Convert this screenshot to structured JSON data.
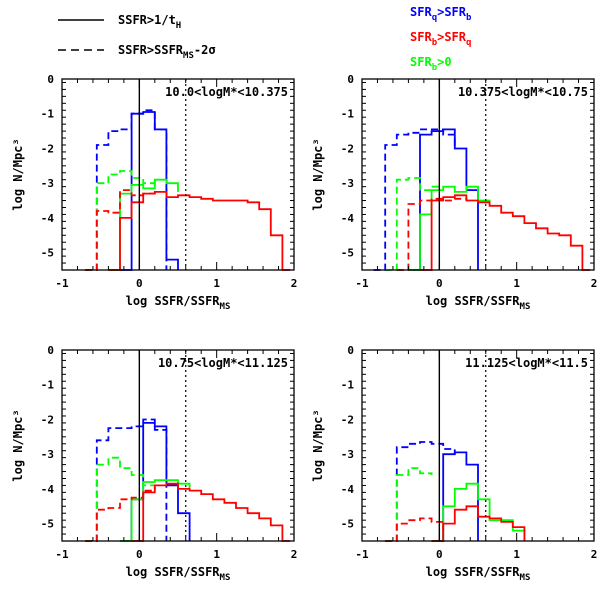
{
  "legend": {
    "solid_label": "SSFR>1/t",
    "solid_sub": "H",
    "dashed_label": "SSFR>SSFR",
    "dashed_sub": "MS",
    "dashed_tail": "-2σ",
    "blue_a": "SFR",
    "blue_a_sub": "q",
    "blue_b": ">SFR",
    "blue_b_sub": "b",
    "red_a": "SFR",
    "red_a_sub": "b",
    "red_b": ">SFR",
    "red_b_sub": "q",
    "green_a": "SFR",
    "green_a_sub": "b",
    "green_b": ">0"
  },
  "colors": {
    "blue": "#0000ff",
    "red": "#ff0000",
    "green": "#00ff00",
    "axis": "#000000"
  },
  "chart_data": [
    {
      "type": "line",
      "title": "10.0<logM*<10.375",
      "xlabel": "log SSFR/SSFR",
      "xlabel_sub": "MS",
      "ylabel": "log N/Mpc³",
      "xlim": [
        -1,
        2
      ],
      "ylim": [
        -5.5,
        0
      ],
      "xticks": [
        "-1",
        "0",
        "1",
        "2"
      ],
      "yticks": [
        "0",
        "-1",
        "-2",
        "-3",
        "-4",
        "-5"
      ],
      "vlines": [
        0,
        0.6
      ],
      "series": [
        {
          "name": "blue dashed",
          "color": "#0000ff",
          "dash": true,
          "x": [
            -0.7,
            -0.55,
            -0.4,
            -0.25,
            -0.1,
            0.05,
            0.2,
            0.35
          ],
          "y": [
            -5.5,
            -1.9,
            -1.5,
            -1.45,
            -1.0,
            -0.9,
            -1.45,
            -5.5
          ]
        },
        {
          "name": "blue solid",
          "color": "#0000ff",
          "dash": false,
          "x": [
            -0.25,
            -0.1,
            0.05,
            0.2,
            0.35,
            0.5
          ],
          "y": [
            -5.5,
            -1.0,
            -0.95,
            -1.45,
            -5.2,
            -5.5
          ]
        },
        {
          "name": "green dashed",
          "color": "#00ff00",
          "dash": true,
          "x": [
            -0.7,
            -0.55,
            -0.4,
            -0.25,
            -0.1,
            0.05,
            0.2
          ],
          "y": [
            -5.5,
            -3.0,
            -2.75,
            -2.65,
            -2.85,
            -3.0,
            -3.1
          ]
        },
        {
          "name": "green solid",
          "color": "#00ff00",
          "dash": false,
          "x": [
            -0.4,
            -0.25,
            -0.1,
            0.05,
            0.2,
            0.35,
            0.5
          ],
          "y": [
            -5.5,
            -3.3,
            -3.05,
            -3.15,
            -2.9,
            -3.0,
            -3.25
          ]
        },
        {
          "name": "red dashed",
          "color": "#ff0000",
          "dash": true,
          "x": [
            -0.7,
            -0.55,
            -0.4,
            -0.25,
            -0.1,
            0.05,
            0.2
          ],
          "y": [
            -5.5,
            -3.8,
            -3.85,
            -3.2,
            -3.35,
            -3.3,
            -3.25
          ]
        },
        {
          "name": "red solid",
          "color": "#ff0000",
          "dash": false,
          "x": [
            -0.4,
            -0.25,
            -0.1,
            0.05,
            0.2,
            0.35,
            0.5,
            0.65,
            0.8,
            0.95,
            1.1,
            1.25,
            1.4,
            1.55,
            1.7,
            1.85,
            1.95
          ],
          "y": [
            -5.5,
            -4.0,
            -3.55,
            -3.3,
            -3.25,
            -3.4,
            -3.35,
            -3.4,
            -3.45,
            -3.5,
            -3.5,
            -3.5,
            -3.55,
            -3.75,
            -4.5,
            -5.5,
            -5.5
          ]
        }
      ]
    },
    {
      "type": "line",
      "title": "10.375<logM*<10.75",
      "xlabel": "log SSFR/SSFR",
      "xlabel_sub": "MS",
      "ylabel": "log N/Mpc³",
      "xlim": [
        -1,
        2
      ],
      "ylim": [
        -5.5,
        0
      ],
      "xticks": [
        "-1",
        "0",
        "1",
        "2"
      ],
      "yticks": [
        "0",
        "-1",
        "-2",
        "-3",
        "-4",
        "-5"
      ],
      "vlines": [
        0,
        0.6
      ],
      "series": [
        {
          "name": "blue dashed",
          "color": "#0000ff",
          "dash": true,
          "x": [
            -0.85,
            -0.7,
            -0.55,
            -0.4,
            -0.25,
            -0.1,
            0.05,
            0.2
          ],
          "y": [
            -5.5,
            -1.9,
            -1.6,
            -1.55,
            -1.45,
            -1.45,
            -1.6,
            -2.0
          ]
        },
        {
          "name": "blue solid",
          "color": "#0000ff",
          "dash": false,
          "x": [
            -0.4,
            -0.25,
            -0.1,
            0.05,
            0.2,
            0.35,
            0.5
          ],
          "y": [
            -5.5,
            -1.6,
            -1.5,
            -1.45,
            -2.0,
            -3.2,
            -5.5
          ]
        },
        {
          "name": "green dashed",
          "color": "#00ff00",
          "dash": true,
          "x": [
            -0.7,
            -0.55,
            -0.4,
            -0.25,
            -0.1,
            0.05
          ],
          "y": [
            -5.5,
            -2.9,
            -2.85,
            -3.2,
            -3.1,
            -3.1
          ]
        },
        {
          "name": "green solid",
          "color": "#00ff00",
          "dash": false,
          "x": [
            -0.4,
            -0.25,
            -0.1,
            0.05,
            0.2,
            0.35,
            0.5,
            0.65
          ],
          "y": [
            -5.5,
            -3.9,
            -3.2,
            -3.1,
            -3.25,
            -3.1,
            -3.5,
            -3.6
          ]
        },
        {
          "name": "red dashed",
          "color": "#ff0000",
          "dash": true,
          "x": [
            -0.55,
            -0.4,
            -0.25,
            -0.1,
            0.05,
            0.2,
            0.35
          ],
          "y": [
            -5.5,
            -3.6,
            -3.5,
            -3.45,
            -3.5,
            -3.45,
            -3.5
          ]
        },
        {
          "name": "red solid",
          "color": "#ff0000",
          "dash": false,
          "x": [
            -0.25,
            -0.1,
            0.05,
            0.2,
            0.35,
            0.5,
            0.65,
            0.8,
            0.95,
            1.1,
            1.25,
            1.4,
            1.55,
            1.7,
            1.85,
            1.95
          ],
          "y": [
            -5.5,
            -3.5,
            -3.4,
            -3.35,
            -3.5,
            -3.55,
            -3.65,
            -3.85,
            -3.95,
            -4.15,
            -4.3,
            -4.45,
            -4.5,
            -4.8,
            -5.5,
            -5.5
          ]
        }
      ]
    },
    {
      "type": "line",
      "title": "10.75<logM*<11.125",
      "xlabel": "log SSFR/SSFR",
      "xlabel_sub": "MS",
      "ylabel": "log N/Mpc³",
      "xlim": [
        -1,
        2
      ],
      "ylim": [
        -5.5,
        0
      ],
      "xticks": [
        "-1",
        "0",
        "1",
        "2"
      ],
      "yticks": [
        "0",
        "-1",
        "-2",
        "-3",
        "-4",
        "-5"
      ],
      "vlines": [
        0,
        0.6
      ],
      "series": [
        {
          "name": "blue dashed",
          "color": "#0000ff",
          "dash": true,
          "x": [
            -0.7,
            -0.55,
            -0.4,
            -0.25,
            -0.1,
            0.05,
            0.2,
            0.35
          ],
          "y": [
            -5.5,
            -2.6,
            -2.25,
            -2.25,
            -2.2,
            -2.0,
            -2.3,
            -5.5
          ]
        },
        {
          "name": "blue solid",
          "color": "#0000ff",
          "dash": false,
          "x": [
            -0.25,
            -0.1,
            0.05,
            0.2,
            0.35,
            0.5,
            0.65
          ],
          "y": [
            -5.5,
            -4.3,
            -2.1,
            -2.2,
            -3.9,
            -4.7,
            -5.5
          ]
        },
        {
          "name": "green dashed",
          "color": "#00ff00",
          "dash": true,
          "x": [
            -0.7,
            -0.55,
            -0.4,
            -0.25,
            -0.1,
            0.05,
            0.2
          ],
          "y": [
            -5.5,
            -3.3,
            -3.1,
            -3.4,
            -3.6,
            -3.9,
            -3.9
          ]
        },
        {
          "name": "green solid",
          "color": "#00ff00",
          "dash": false,
          "x": [
            -0.25,
            -0.1,
            0.05,
            0.2,
            0.35,
            0.5,
            0.65
          ],
          "y": [
            -5.5,
            -4.3,
            -3.8,
            -3.75,
            -3.75,
            -3.85,
            -4.0
          ]
        },
        {
          "name": "red dashed",
          "color": "#ff0000",
          "dash": true,
          "x": [
            -0.7,
            -0.55,
            -0.4,
            -0.25,
            -0.1,
            0.05,
            0.2
          ],
          "y": [
            -5.5,
            -4.6,
            -4.55,
            -4.3,
            -4.25,
            -4.05,
            -3.95
          ]
        },
        {
          "name": "red solid",
          "color": "#ff0000",
          "dash": false,
          "x": [
            -0.1,
            0.05,
            0.2,
            0.35,
            0.5,
            0.65,
            0.8,
            0.95,
            1.1,
            1.25,
            1.4,
            1.55,
            1.7,
            1.85,
            1.95
          ],
          "y": [
            -5.5,
            -4.1,
            -3.9,
            -3.85,
            -4.0,
            -4.05,
            -4.15,
            -4.3,
            -4.4,
            -4.55,
            -4.7,
            -4.85,
            -5.05,
            -5.5,
            -5.5
          ]
        }
      ]
    },
    {
      "type": "line",
      "title": "11.125<logM*<11.5",
      "xlabel": "log SSFR/SSFR",
      "xlabel_sub": "MS",
      "ylabel": "log N/Mpc³",
      "xlim": [
        -1,
        2
      ],
      "ylim": [
        -5.5,
        0
      ],
      "xticks": [
        "-1",
        "0",
        "1",
        "2"
      ],
      "yticks": [
        "0",
        "-1",
        "-2",
        "-3",
        "-4",
        "-5"
      ],
      "vlines": [
        0,
        0.6
      ],
      "series": [
        {
          "name": "blue dashed",
          "color": "#0000ff",
          "dash": true,
          "x": [
            -0.7,
            -0.55,
            -0.4,
            -0.25,
            -0.1,
            0.05,
            0.2
          ],
          "y": [
            -5.5,
            -2.8,
            -2.7,
            -2.65,
            -2.7,
            -2.85,
            -3.0
          ]
        },
        {
          "name": "blue solid",
          "color": "#0000ff",
          "dash": false,
          "x": [
            -0.1,
            0.05,
            0.2,
            0.35,
            0.5
          ],
          "y": [
            -5.5,
            -3.0,
            -2.95,
            -3.3,
            -5.5
          ]
        },
        {
          "name": "green dashed",
          "color": "#00ff00",
          "dash": true,
          "x": [
            -0.7,
            -0.55,
            -0.4,
            -0.25,
            -0.1
          ],
          "y": [
            -5.5,
            -3.6,
            -3.4,
            -3.55,
            -3.6
          ]
        },
        {
          "name": "green solid",
          "color": "#00ff00",
          "dash": false,
          "x": [
            -0.1,
            0.05,
            0.2,
            0.35,
            0.5,
            0.65,
            0.8,
            0.95,
            1.1
          ],
          "y": [
            -5.5,
            -4.5,
            -4.0,
            -3.85,
            -4.3,
            -4.9,
            -4.9,
            -5.2,
            -5.5
          ]
        },
        {
          "name": "red dashed",
          "color": "#ff0000",
          "dash": true,
          "x": [
            -0.7,
            -0.55,
            -0.4,
            -0.25,
            -0.1,
            0.05
          ],
          "y": [
            -5.5,
            -5.0,
            -4.9,
            -4.85,
            -4.95,
            -5.2
          ]
        },
        {
          "name": "red solid",
          "color": "#ff0000",
          "dash": false,
          "x": [
            -0.1,
            0.05,
            0.2,
            0.35,
            0.5,
            0.65,
            0.8,
            0.95,
            1.1
          ],
          "y": [
            -5.5,
            -5.0,
            -4.6,
            -4.5,
            -4.8,
            -4.85,
            -4.95,
            -5.1,
            -5.5
          ]
        }
      ]
    }
  ]
}
